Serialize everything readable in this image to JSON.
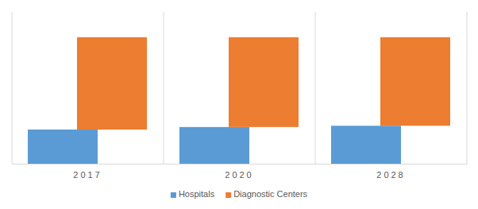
{
  "chart_data": {
    "type": "bar",
    "stacked": true,
    "categories": [
      "2017",
      "2020",
      "2028"
    ],
    "series": [
      {
        "name": "Hospitals",
        "color": "#5b9bd5",
        "values": [
          27,
          29,
          30
        ]
      },
      {
        "name": "Diagnostic Centers",
        "color": "#ed7d31",
        "values": [
          73,
          71,
          70
        ]
      }
    ],
    "ylim": [
      0,
      120
    ],
    "grid": false,
    "legend": "bottom",
    "tick_labels": "x"
  }
}
